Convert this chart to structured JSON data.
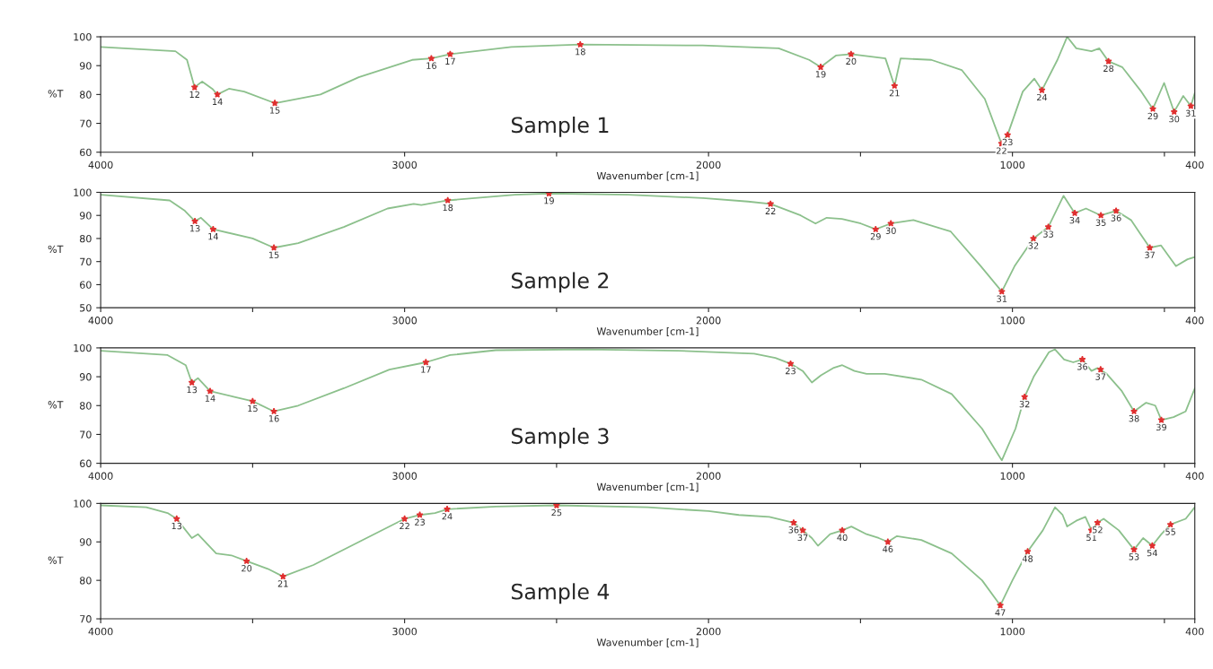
{
  "chart_data": [
    {
      "type": "line",
      "xlabel": "Wavenumber [cm-1]",
      "ylabel": "%T",
      "xlim": [
        4000,
        400
      ],
      "ylim": [
        60,
        100
      ],
      "xticks": [
        4000,
        {
          "value": 3500,
          "label": null
        },
        3000,
        {
          "value": 2500,
          "label": null
        },
        2000,
        {
          "value": 1500,
          "label": null
        },
        1000,
        {
          "value": 500,
          "label": null
        },
        400
      ],
      "yticks": [
        60,
        70,
        80,
        90,
        100
      ],
      "x": [
        4000,
        3754,
        3716,
        3691,
        3666,
        3633,
        3616,
        3578,
        3528,
        3427,
        3277,
        3151,
        2975,
        2912,
        2850,
        2649,
        2422,
        2020,
        1769,
        1669,
        1631,
        1581,
        1531,
        1418,
        1388,
        1368,
        1267,
        1167,
        1091,
        1036,
        1016,
        966,
        928,
        903,
        852,
        820,
        790,
        740,
        714,
        684,
        639,
        576,
        538,
        501,
        468,
        438,
        413,
        400
      ],
      "series": [
        {
          "color": "#8cc08c",
          "values": [
            96.5,
            95,
            92,
            82.5,
            84.5,
            82,
            80,
            82,
            81,
            77,
            80,
            86,
            92,
            92.5,
            94,
            96.5,
            97.3,
            97,
            96,
            92,
            89.5,
            93.5,
            94,
            92.5,
            83,
            92.5,
            92,
            88.5,
            78.5,
            63,
            66,
            81,
            85.5,
            81.5,
            92,
            100,
            96,
            95,
            96,
            91.5,
            89.5,
            81,
            75,
            84,
            74,
            79.5,
            76,
            80.5
          ]
        }
      ],
      "annotations": [
        "Sample 1",
        {
          "text": "12",
          "x": 3691,
          "y": 82.5
        },
        {
          "text": "14",
          "x": 3616,
          "y": 80
        },
        {
          "text": "15",
          "x": 3427,
          "y": 77
        },
        {
          "text": "16",
          "x": 2912,
          "y": 92.5
        },
        {
          "text": "17",
          "x": 2850,
          "y": 94
        },
        {
          "text": "18",
          "x": 2422,
          "y": 97.3
        },
        {
          "text": "19",
          "x": 1631,
          "y": 89.5
        },
        {
          "text": "20",
          "x": 1531,
          "y": 94
        },
        {
          "text": "21",
          "x": 1388,
          "y": 83
        },
        {
          "text": "22",
          "x": 1036,
          "y": 63
        },
        {
          "text": "23",
          "x": 1016,
          "y": 66
        },
        {
          "text": "24",
          "x": 903,
          "y": 81.5
        },
        {
          "text": "28",
          "x": 684,
          "y": 91.5
        },
        {
          "text": "29",
          "x": 538,
          "y": 75
        },
        {
          "text": "30",
          "x": 468,
          "y": 74
        },
        {
          "text": "31",
          "x": 413,
          "y": 76
        }
      ]
    },
    {
      "type": "line",
      "xlabel": "Wavenumber [cm-1]",
      "ylabel": "%T",
      "xlim": [
        4000,
        400
      ],
      "ylim": [
        50,
        100
      ],
      "xticks": [
        4000,
        {
          "value": 3500,
          "label": null
        },
        3000,
        {
          "value": 2500,
          "label": null
        },
        2000,
        {
          "value": 1500,
          "label": null
        },
        1000,
        {
          "value": 500,
          "label": null
        },
        400
      ],
      "yticks": [
        50,
        60,
        70,
        80,
        90,
        100
      ],
      "x": [
        4000,
        3773,
        3723,
        3690,
        3670,
        3630,
        3500,
        3430,
        3350,
        3200,
        3056,
        2970,
        2945,
        2858,
        2636,
        2525,
        2265,
        2018,
        1870,
        1796,
        1697,
        1648,
        1611,
        1561,
        1499,
        1450,
        1400,
        1326,
        1203,
        1104,
        1035,
        993,
        931,
        882,
        832,
        795,
        758,
        709,
        659,
        610,
        548,
        511,
        462,
        424,
        400
      ],
      "series": [
        {
          "color": "#8cc08c",
          "values": [
            99,
            96.5,
            92,
            87.5,
            89,
            84,
            80,
            76,
            78,
            85,
            93,
            95,
            94.5,
            96.5,
            99,
            99.5,
            99,
            97.5,
            96,
            95,
            90,
            86.5,
            89,
            88.5,
            86.5,
            84,
            86.5,
            88,
            83,
            68,
            57,
            68,
            80,
            85,
            98.5,
            91,
            93,
            90,
            92,
            88,
            76,
            77,
            68,
            71,
            72
          ]
        }
      ],
      "annotations": [
        "Sample 2",
        {
          "text": "13",
          "x": 3690,
          "y": 87.5
        },
        {
          "text": "14",
          "x": 3630,
          "y": 84
        },
        {
          "text": "15",
          "x": 3430,
          "y": 76
        },
        {
          "text": "18",
          "x": 2858,
          "y": 96.5
        },
        {
          "text": "19",
          "x": 2525,
          "y": 99.5
        },
        {
          "text": "22",
          "x": 1796,
          "y": 95
        },
        {
          "text": "29",
          "x": 1450,
          "y": 84
        },
        {
          "text": "30",
          "x": 1400,
          "y": 86.5
        },
        {
          "text": "31",
          "x": 1035,
          "y": 57
        },
        {
          "text": "32",
          "x": 931,
          "y": 80
        },
        {
          "text": "33",
          "x": 882,
          "y": 85
        },
        {
          "text": "34",
          "x": 795,
          "y": 91
        },
        {
          "text": "35",
          "x": 709,
          "y": 90
        },
        {
          "text": "36",
          "x": 659,
          "y": 92
        },
        {
          "text": "37",
          "x": 548,
          "y": 76
        }
      ]
    },
    {
      "type": "line",
      "xlabel": "Wavenumber [cm-1]",
      "ylabel": "%T",
      "xlim": [
        4000,
        400
      ],
      "ylim": [
        60,
        100
      ],
      "xticks": [
        4000,
        {
          "value": 3500,
          "label": null
        },
        3000,
        {
          "value": 2500,
          "label": null
        },
        2000,
        {
          "value": 1500,
          "label": null
        },
        1000,
        {
          "value": 500,
          "label": null
        },
        400
      ],
      "yticks": [
        60,
        70,
        80,
        90,
        100
      ],
      "x": [
        4000,
        3780,
        3720,
        3700,
        3680,
        3640,
        3560,
        3500,
        3430,
        3350,
        3200,
        3050,
        2930,
        2850,
        2700,
        2400,
        2100,
        1850,
        1780,
        1730,
        1690,
        1660,
        1630,
        1590,
        1560,
        1520,
        1480,
        1420,
        1300,
        1200,
        1100,
        1035,
        990,
        960,
        930,
        880,
        860,
        830,
        800,
        770,
        740,
        720,
        690,
        640,
        600,
        560,
        530,
        510,
        470,
        430,
        400
      ],
      "series": [
        {
          "color": "#8cc08c",
          "values": [
            99,
            97.5,
            94,
            88,
            89.5,
            85,
            83,
            81.5,
            78,
            80,
            86,
            92.5,
            95,
            97.5,
            99.2,
            99.5,
            99,
            98,
            96.5,
            94.5,
            92,
            88,
            90.5,
            93,
            94,
            92,
            91,
            91,
            89,
            84,
            72,
            61,
            72,
            83,
            90,
            98.5,
            99.5,
            96,
            95,
            96,
            92,
            93,
            91,
            85,
            78,
            81,
            80,
            75,
            76,
            78,
            86
          ]
        }
      ],
      "annotations": [
        "Sample 3",
        {
          "text": "13",
          "x": 3700,
          "y": 88
        },
        {
          "text": "14",
          "x": 3640,
          "y": 85
        },
        {
          "text": "15",
          "x": 3500,
          "y": 81.5
        },
        {
          "text": "16",
          "x": 3430,
          "y": 78
        },
        {
          "text": "17",
          "x": 2930,
          "y": 95
        },
        {
          "text": "23",
          "x": 1730,
          "y": 94.5
        },
        {
          "text": "32",
          "x": 960,
          "y": 83
        },
        {
          "text": "36",
          "x": 770,
          "y": 96
        },
        {
          "text": "37",
          "x": 710,
          "y": 92.5
        },
        {
          "text": "38",
          "x": 600,
          "y": 78
        },
        {
          "text": "39",
          "x": 510,
          "y": 75
        }
      ]
    },
    {
      "type": "line",
      "xlabel": "Wavenumber [cm-1]",
      "ylabel": "%T",
      "xlim": [
        4000,
        400
      ],
      "ylim": [
        70,
        100
      ],
      "xticks": [
        4000,
        {
          "value": 3500,
          "label": null
        },
        3000,
        {
          "value": 2500,
          "label": null
        },
        2000,
        {
          "value": 1500,
          "label": null
        },
        1000,
        {
          "value": 500,
          "label": null
        },
        400
      ],
      "yticks": [
        70,
        80,
        90,
        100
      ],
      "x": [
        4000,
        3850,
        3780,
        3750,
        3730,
        3700,
        3680,
        3650,
        3620,
        3570,
        3520,
        3450,
        3400,
        3300,
        3150,
        3000,
        2950,
        2900,
        2860,
        2700,
        2500,
        2200,
        2000,
        1900,
        1800,
        1720,
        1690,
        1660,
        1640,
        1600,
        1560,
        1530,
        1480,
        1440,
        1410,
        1380,
        1300,
        1200,
        1100,
        1040,
        1000,
        950,
        900,
        860,
        835,
        820,
        790,
        760,
        740,
        720,
        700,
        650,
        600,
        570,
        540,
        510,
        480,
        430,
        400
      ],
      "series": [
        {
          "color": "#8cc08c",
          "values": [
            99.5,
            99,
            97.5,
            96,
            94,
            91,
            92,
            89.5,
            87,
            86.5,
            85,
            83,
            81,
            84,
            90,
            96,
            97,
            97.5,
            98.5,
            99.2,
            99.5,
            99,
            98,
            97,
            96.5,
            95,
            93,
            91,
            89,
            92,
            93,
            94,
            92,
            91,
            90,
            91.5,
            90.5,
            87,
            80,
            73.5,
            80,
            87.5,
            93,
            99,
            97,
            94,
            95.5,
            96.5,
            93,
            95,
            96,
            93,
            88,
            91,
            89,
            92,
            94.5,
            96,
            99
          ]
        }
      ],
      "annotations": [
        "Sample 4",
        {
          "text": "13",
          "x": 3750,
          "y": 96
        },
        {
          "text": "20",
          "x": 3520,
          "y": 85
        },
        {
          "text": "21",
          "x": 3400,
          "y": 81
        },
        {
          "text": "22",
          "x": 3000,
          "y": 96
        },
        {
          "text": "23",
          "x": 2950,
          "y": 97
        },
        {
          "text": "24",
          "x": 2860,
          "y": 98.5
        },
        {
          "text": "25",
          "x": 2500,
          "y": 99.5
        },
        {
          "text": "36",
          "x": 1720,
          "y": 95
        },
        {
          "text": "37",
          "x": 1690,
          "y": 93
        },
        {
          "text": "40",
          "x": 1560,
          "y": 93
        },
        {
          "text": "46",
          "x": 1410,
          "y": 90
        },
        {
          "text": "47",
          "x": 1040,
          "y": 73.5
        },
        {
          "text": "48",
          "x": 950,
          "y": 87.5
        },
        {
          "text": "51",
          "x": 740,
          "y": 93
        },
        {
          "text": "52",
          "x": 720,
          "y": 95
        },
        {
          "text": "53",
          "x": 600,
          "y": 88
        },
        {
          "text": "54",
          "x": 540,
          "y": 89
        },
        {
          "text": "55",
          "x": 480,
          "y": 94.5
        }
      ]
    }
  ]
}
